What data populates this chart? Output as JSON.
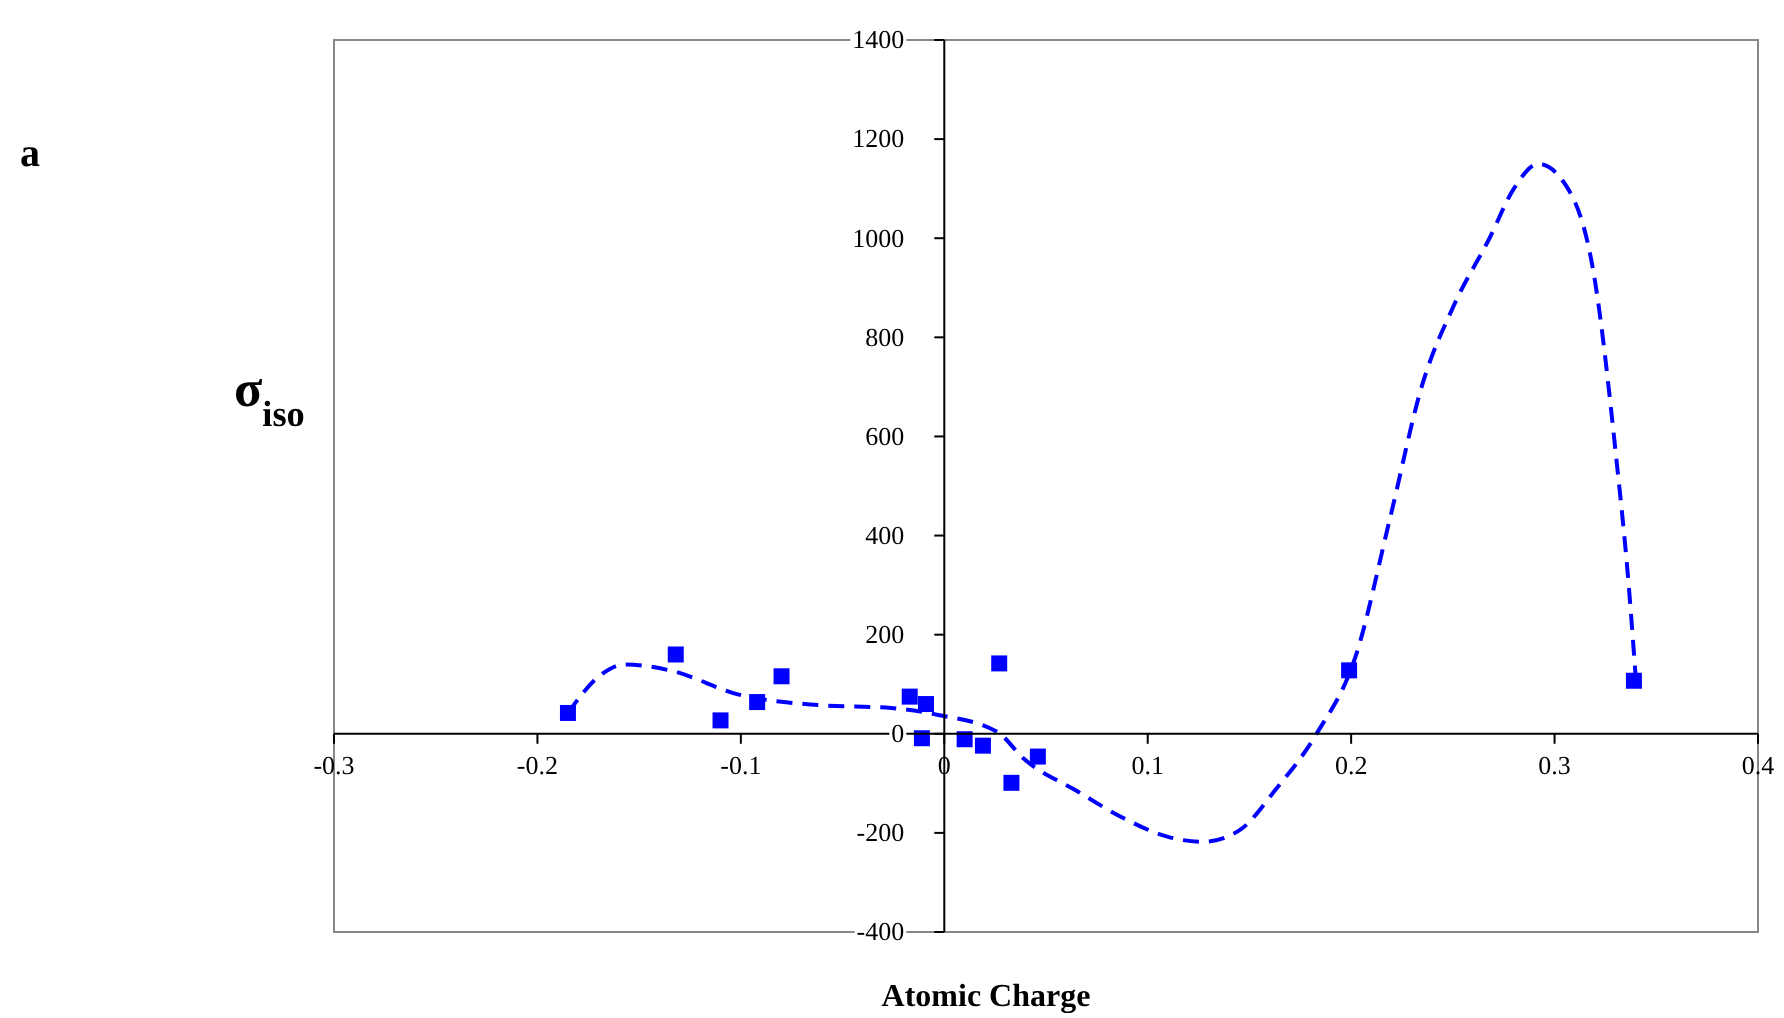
{
  "chart_data": {
    "type": "scatter",
    "xlabel": "Atomic Charge",
    "ylabel": "σ$_{iso}$",
    "annotations": [
      "a"
    ],
    "xlim": [
      -0.3,
      0.4
    ],
    "xticks": [
      -0.3,
      -0.2,
      -0.1,
      0,
      0.1,
      0.2,
      0.3,
      0.4
    ],
    "ylim": [
      -400,
      1400
    ],
    "yticks": [
      -400,
      -200,
      0,
      200,
      400,
      600,
      800,
      1000,
      1200,
      1400
    ],
    "grid": false,
    "series": [
      {
        "color": "#0000ff",
        "marker": "square",
        "x": [
          -0.185,
          -0.132,
          -0.11,
          -0.092,
          -0.08,
          -0.017,
          -0.009,
          -0.011,
          0.01,
          0.019,
          0.027,
          0.033,
          0.046,
          0.199,
          0.339
        ],
        "values": [
          42,
          160,
          27,
          64,
          116,
          75,
          60,
          -9,
          -11,
          -24,
          142,
          -99,
          -46,
          128,
          107
        ]
      },
      {
        "type": "line",
        "color": "#0000ff",
        "marker": "none",
        "line_style": "dashed",
        "x": [
          -0.185,
          -0.17,
          -0.157,
          -0.134,
          -0.101,
          -0.062,
          -0.026,
          -0.003,
          0.026,
          0.039,
          0.065,
          0.088,
          0.11,
          0.127,
          0.145,
          0.163,
          0.183,
          0.2025,
          0.219,
          0.235,
          0.25,
          0.268,
          0.28,
          0.292,
          0.305,
          0.32,
          0.33,
          0.3365,
          0.34
        ],
        "values": [
          42,
          115,
          140,
          127,
          79,
          58,
          52,
          38,
          4,
          -50,
          -115,
          -170,
          -208,
          -218,
          -195,
          -112,
          0,
          160,
          433,
          705,
          860,
          1000,
          1100,
          1150,
          1110,
          910,
          569,
          297,
          107
        ]
      }
    ]
  }
}
